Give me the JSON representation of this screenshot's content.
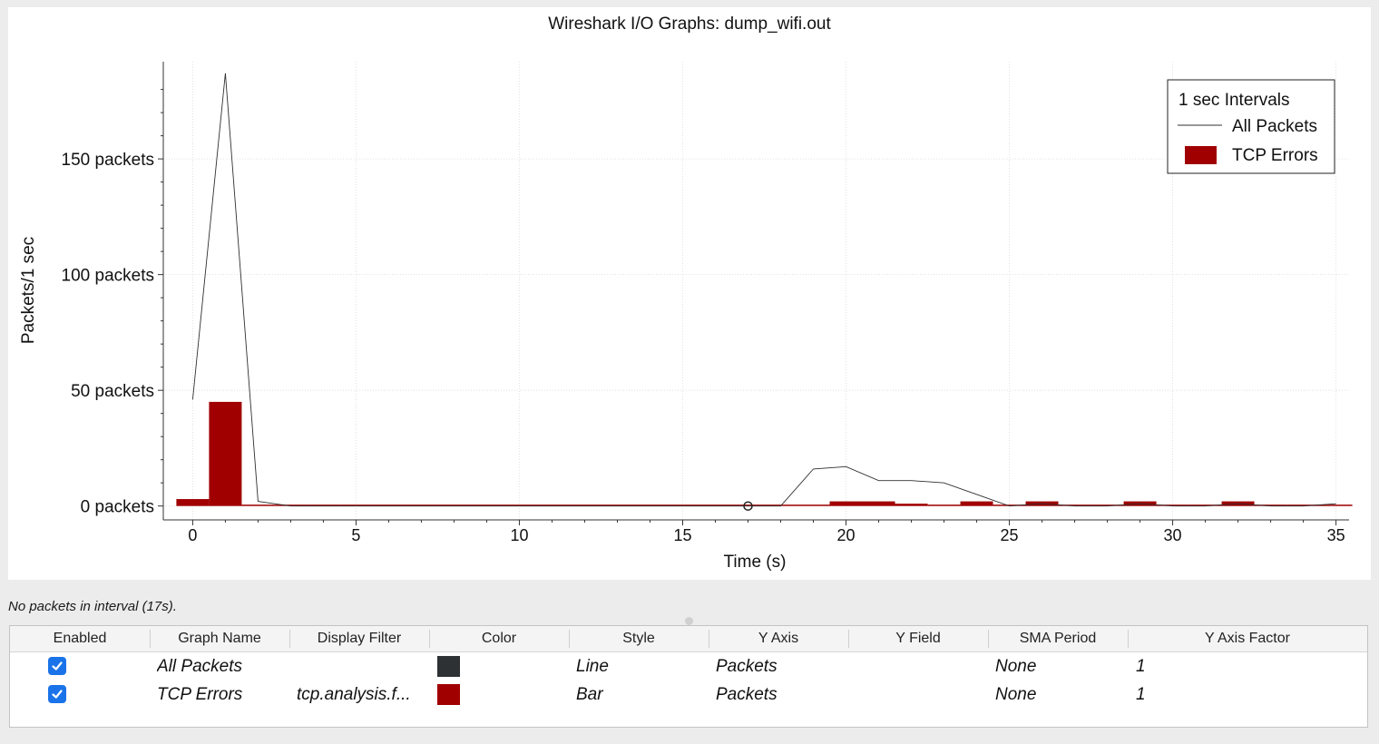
{
  "chart_data": {
    "type": "line",
    "title": "Wireshark I/O Graphs: dump_wifi.out",
    "xlabel": "Time (s)",
    "ylabel": "Packets/1 sec",
    "xlim": [
      -0.9,
      35.4
    ],
    "ylim": [
      -6,
      192
    ],
    "xticks": [
      0,
      5,
      10,
      15,
      20,
      25,
      30,
      35
    ],
    "yticks": [
      {
        "value": 0,
        "label": "0 packets"
      },
      {
        "value": 50,
        "label": "50 packets"
      },
      {
        "value": 100,
        "label": "100 packets"
      },
      {
        "value": 150,
        "label": "150 packets"
      }
    ],
    "grid": true,
    "legend": {
      "title": "1 sec Intervals",
      "placement": "top-right",
      "entries": [
        "All Packets",
        "TCP Errors"
      ]
    },
    "series": [
      {
        "name": "All Packets",
        "style": "line",
        "color": "#303030",
        "x": [
          0,
          1,
          2,
          3,
          4,
          5,
          6,
          7,
          8,
          9,
          10,
          11,
          12,
          13,
          14,
          15,
          16,
          17,
          18,
          19,
          20,
          21,
          22,
          23,
          24,
          25,
          26,
          27,
          28,
          29,
          30,
          31,
          32,
          33,
          34,
          35
        ],
        "values": [
          46,
          187,
          2,
          0,
          0,
          0,
          0,
          0,
          0,
          0,
          0,
          0,
          0,
          0,
          0,
          0,
          0,
          0,
          0,
          16,
          17,
          11,
          11,
          10,
          5,
          0,
          1,
          0,
          0,
          1,
          0,
          0,
          1,
          0,
          0,
          1
        ]
      },
      {
        "name": "TCP Errors",
        "style": "bar",
        "color": "#a00000",
        "x": [
          0,
          1,
          2,
          3,
          4,
          5,
          6,
          7,
          8,
          9,
          10,
          11,
          12,
          13,
          14,
          15,
          16,
          17,
          18,
          19,
          20,
          21,
          22,
          23,
          24,
          25,
          26,
          27,
          28,
          29,
          30,
          31,
          32,
          33,
          34,
          35
        ],
        "values": [
          3,
          45,
          0,
          0,
          0,
          0,
          0,
          0,
          0,
          0,
          0,
          0,
          0,
          0,
          0,
          0,
          0,
          0,
          0,
          0,
          2,
          2,
          1,
          0,
          2,
          0,
          2,
          0,
          0,
          2,
          0,
          0,
          2,
          0,
          0,
          0
        ]
      }
    ],
    "annotations": [
      {
        "type": "marker",
        "x": 17,
        "y": 0,
        "shape": "circle"
      }
    ]
  },
  "status": {
    "text": "No packets in interval (17s)."
  },
  "table": {
    "columns": [
      "Enabled",
      "Graph Name",
      "Display Filter",
      "Color",
      "Style",
      "Y Axis",
      "Y Field",
      "SMA Period",
      "Y Axis Factor"
    ],
    "rows": [
      {
        "enabled": true,
        "name": "All Packets",
        "filter": "",
        "color": "#2e3133",
        "style": "Line",
        "y_axis": "Packets",
        "y_field": "",
        "sma": "None",
        "factor": "1"
      },
      {
        "enabled": true,
        "name": "TCP Errors",
        "filter": "tcp.analysis.f...",
        "color": "#a00000",
        "style": "Bar",
        "y_axis": "Packets",
        "y_field": "",
        "sma": "None",
        "factor": "1"
      }
    ]
  }
}
